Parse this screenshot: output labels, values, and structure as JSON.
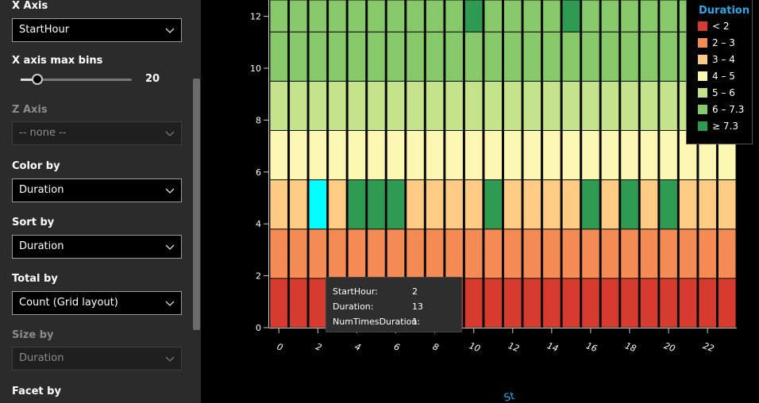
{
  "panel": {
    "x_axis_label": "X Axis",
    "x_axis_value": "StartHour",
    "bins_label": "X axis max bins",
    "bins_value": "20",
    "bins_fraction": 0.15,
    "z_axis_label": "Z Axis",
    "z_axis_value": "-- none --",
    "color_by_label": "Color by",
    "color_by_value": "Duration",
    "sort_by_label": "Sort by",
    "sort_by_value": "Duration",
    "total_by_label": "Total by",
    "total_by_value": "Count (Grid layout)",
    "size_by_label": "Size by",
    "size_by_value": "Duration",
    "facet_by_label": "Facet by"
  },
  "legend": {
    "title": "Duration",
    "items": [
      {
        "label": "< 2",
        "color": "#d73a2f"
      },
      {
        "label": "2 – 3",
        "color": "#f48b55"
      },
      {
        "label": "3 – 4",
        "color": "#fdcb83"
      },
      {
        "label": "4 – 5",
        "color": "#fbf6b2"
      },
      {
        "label": "5 – 6",
        "color": "#c4e38a"
      },
      {
        "label": "6 – 7.3",
        "color": "#86c86a"
      },
      {
        "label": "≥ 7.3",
        "color": "#2f9a52"
      }
    ]
  },
  "tooltip": {
    "rows": [
      {
        "key": "StartHour:",
        "value": "2"
      },
      {
        "key": "Duration:",
        "value": "13"
      },
      {
        "key": "NumTimesDuration:",
        "value": "1"
      }
    ]
  },
  "chart_data": {
    "type": "heatmap",
    "x_ticks": [
      "0",
      "2",
      "4",
      "6",
      "8",
      "10",
      "12",
      "14",
      "16",
      "18",
      "20",
      "22"
    ],
    "y_ticks": [
      "0",
      "2",
      "4",
      "6",
      "8",
      "10",
      "12"
    ],
    "ylim": [
      0,
      12.6
    ],
    "columns": 24,
    "rows_visible": 7,
    "highlight": {
      "color": "#00ffff",
      "column": 2,
      "row": 2
    },
    "cells": [
      [
        0,
        1,
        2,
        3,
        4,
        5,
        5
      ],
      [
        0,
        1,
        2,
        3,
        4,
        5,
        5
      ],
      [
        0,
        1,
        2,
        3,
        4,
        5,
        5
      ],
      [
        0,
        1,
        2,
        3,
        4,
        5,
        5
      ],
      [
        0,
        1,
        6,
        3,
        4,
        5,
        5
      ],
      [
        0,
        1,
        6,
        3,
        4,
        5,
        5
      ],
      [
        0,
        1,
        6,
        3,
        4,
        5,
        5
      ],
      [
        0,
        1,
        2,
        3,
        4,
        5,
        5
      ],
      [
        0,
        1,
        2,
        3,
        4,
        5,
        5
      ],
      [
        0,
        1,
        2,
        3,
        4,
        5,
        5
      ],
      [
        0,
        1,
        2,
        3,
        4,
        5,
        6
      ],
      [
        0,
        1,
        6,
        3,
        4,
        5,
        5
      ],
      [
        0,
        1,
        2,
        3,
        4,
        5,
        5
      ],
      [
        0,
        1,
        2,
        3,
        4,
        5,
        5
      ],
      [
        0,
        1,
        2,
        3,
        4,
        5,
        5
      ],
      [
        0,
        1,
        2,
        3,
        4,
        5,
        6
      ],
      [
        0,
        1,
        6,
        3,
        4,
        5,
        5
      ],
      [
        0,
        1,
        2,
        3,
        4,
        5,
        5
      ],
      [
        0,
        1,
        6,
        3,
        4,
        5,
        5
      ],
      [
        0,
        1,
        2,
        3,
        4,
        5,
        5
      ],
      [
        0,
        1,
        6,
        3,
        4,
        5,
        5
      ],
      [
        0,
        1,
        2,
        3,
        4,
        5,
        5
      ],
      [
        0,
        1,
        2,
        3,
        4,
        5,
        5
      ],
      [
        0,
        1,
        2,
        3,
        4,
        5,
        5
      ]
    ]
  },
  "axis_title_fragment": "St"
}
